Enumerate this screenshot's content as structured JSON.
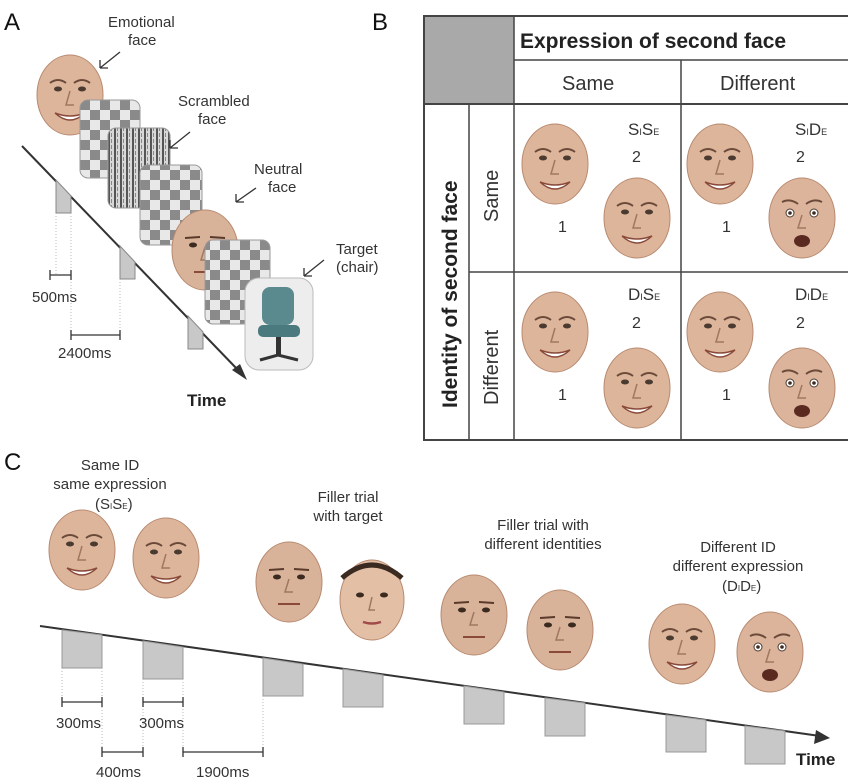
{
  "colors": {
    "header_gray": "#a9a9a9",
    "skin": "#ddb59b",
    "skin_dark": "#b88a70",
    "check_dark": "#8a8a8a",
    "check_light": "#e8e8e8",
    "marker_fill": "#c8c8c8",
    "chair": "#5a8a8e"
  },
  "panelA": {
    "letter": "A",
    "labels": {
      "emotional_1": "Emotional",
      "emotional_2": "face",
      "scrambled_1": "Scrambled",
      "scrambled_2": "face",
      "neutral_1": "Neutral",
      "neutral_2": "face",
      "target_1": "Target",
      "target_2": "(chair)"
    },
    "durations": {
      "short": "500ms",
      "long": "2400ms"
    },
    "time_label": "Time"
  },
  "panelB": {
    "letter": "B",
    "header": "Expression of second face",
    "col_same": "Same",
    "col_different": "Different",
    "row_header": "Identity of second face",
    "row_same": "Same",
    "row_different": "Different",
    "cells": [
      {
        "code_a": "S",
        "sub_a": "I",
        "code_b": "S",
        "sub_b": "E",
        "first": "1",
        "second": "2"
      },
      {
        "code_a": "S",
        "sub_a": "I",
        "code_b": "D",
        "sub_b": "E",
        "first": "1",
        "second": "2"
      },
      {
        "code_a": "D",
        "sub_a": "I",
        "code_b": "S",
        "sub_b": "E",
        "first": "1",
        "second": "2"
      },
      {
        "code_a": "D",
        "sub_a": "I",
        "code_b": "D",
        "sub_b": "E",
        "first": "1",
        "second": "2"
      }
    ]
  },
  "panelC": {
    "letter": "C",
    "trial1_l1": "Same ID",
    "trial1_l2": "same expression",
    "trial1_code": {
      "open": "(S",
      "sub_a": "I",
      "mid": "S",
      "sub_b": "E",
      "close": ")"
    },
    "trial2_l1": "Filler trial",
    "trial2_l2": "with target",
    "trial3_l1": "Filler trial with",
    "trial3_l2": "different identities",
    "trial4_l1": "Different ID",
    "trial4_l2": "different expression",
    "trial4_code": {
      "open": "(D",
      "sub_a": "I",
      "mid": "D",
      "sub_b": "E",
      "close": ")"
    },
    "durations": {
      "d300a": "300ms",
      "d300b": "300ms",
      "d400": "400ms",
      "d1900": "1900ms"
    },
    "time_label": "Time"
  }
}
